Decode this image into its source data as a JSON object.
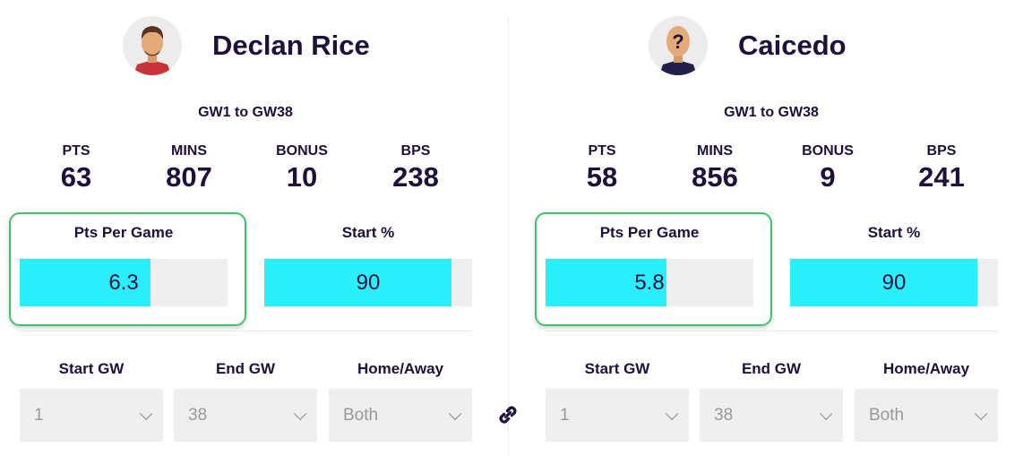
{
  "players": [
    {
      "name": "Declan Rice",
      "avatar": "player-photo",
      "range": "GW1 to GW38",
      "stats": [
        {
          "label": "PTS",
          "value": "63"
        },
        {
          "label": "MINS",
          "value": "807"
        },
        {
          "label": "BONUS",
          "value": "10"
        },
        {
          "label": "BPS",
          "value": "238"
        }
      ],
      "ppg": {
        "label": "Pts Per Game",
        "value": "6.3",
        "fill_percent": 63
      },
      "start": {
        "label": "Start %",
        "value": "90",
        "fill_percent": 90
      },
      "filters": [
        {
          "label": "Start GW",
          "value": "1"
        },
        {
          "label": "End GW",
          "value": "38"
        },
        {
          "label": "Home/Away",
          "value": "Both"
        }
      ]
    },
    {
      "name": "Caicedo",
      "avatar": "unknown-player-silhouette",
      "range": "GW1 to GW38",
      "stats": [
        {
          "label": "PTS",
          "value": "58"
        },
        {
          "label": "MINS",
          "value": "856"
        },
        {
          "label": "BONUS",
          "value": "9"
        },
        {
          "label": "BPS",
          "value": "241"
        }
      ],
      "ppg": {
        "label": "Pts Per Game",
        "value": "5.8",
        "fill_percent": 58
      },
      "start": {
        "label": "Start %",
        "value": "90",
        "fill_percent": 90
      },
      "filters": [
        {
          "label": "Start GW",
          "value": "1"
        },
        {
          "label": "End GW",
          "value": "38"
        },
        {
          "label": "Home/Away",
          "value": "Both"
        }
      ]
    }
  ],
  "colors": {
    "bar_fill": "#29effa",
    "highlight": "#3cc468",
    "text": "#1e0f3c"
  },
  "link_icon": "link-icon"
}
